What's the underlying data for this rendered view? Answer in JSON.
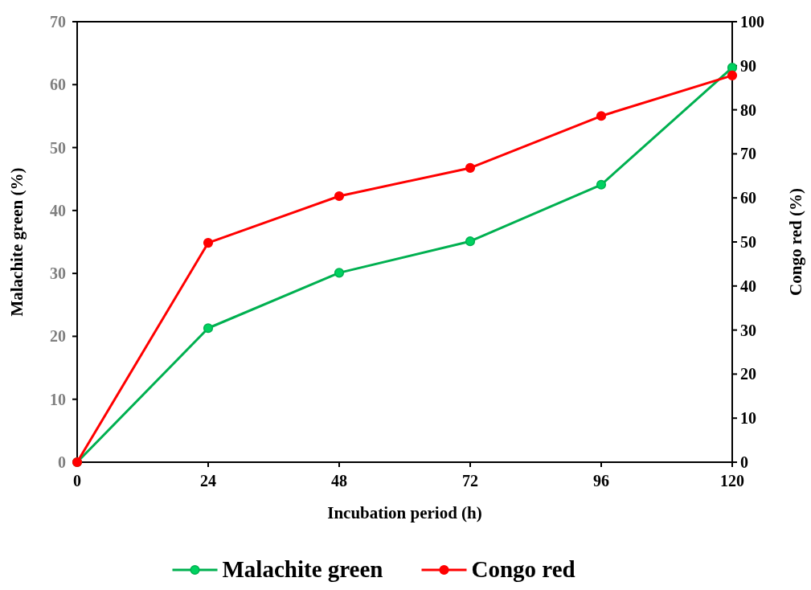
{
  "chart_data": {
    "type": "line",
    "xlabel": "Incubation period (h)",
    "ylabel": "Malachite green (%)",
    "y2label": "Congo red (%)",
    "x": [
      0,
      24,
      48,
      72,
      96,
      120
    ],
    "xlim": [
      0,
      120
    ],
    "xticks": [
      0,
      24,
      48,
      72,
      96,
      120
    ],
    "ylim": [
      0,
      70
    ],
    "yticks": [
      0,
      10,
      20,
      30,
      40,
      50,
      60,
      70
    ],
    "y2lim": [
      0,
      100
    ],
    "y2ticks": [
      0,
      10,
      20,
      30,
      40,
      50,
      60,
      70,
      80,
      90,
      100
    ],
    "series": [
      {
        "name": "Malachite green",
        "color": "#00b050",
        "values": [
          0,
          21.3,
          30.1,
          35.1,
          44.1,
          62.7
        ]
      },
      {
        "name": "Congo red",
        "color": "#ff0000",
        "axis": "y2",
        "values": [
          0,
          49.8,
          60.4,
          66.8,
          78.6,
          87.8
        ]
      }
    ],
    "marker": "circle",
    "line_style": "solid",
    "grid": false,
    "legend": "bottom"
  }
}
